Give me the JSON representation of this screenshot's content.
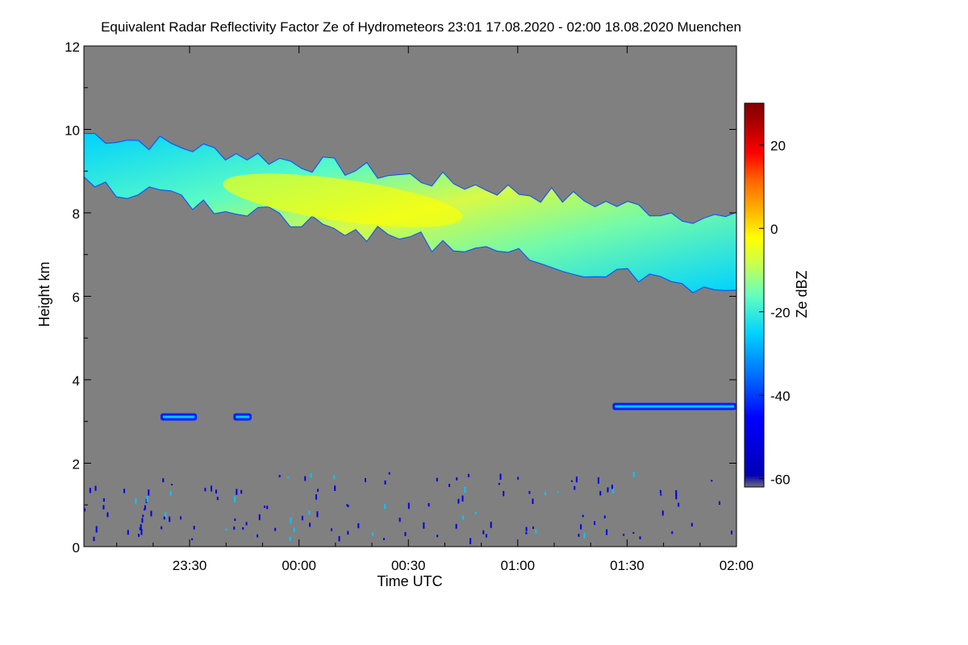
{
  "chart_data": {
    "type": "heatmap",
    "title": "Equivalent Radar Reflectivity Factor Ze of Hydrometeors   23:01 17.08.2020 - 02:00 18.08.2020 Muenchen",
    "xlabel": "Time UTC",
    "ylabel": "Height km",
    "x_range_minutes_from_midnight": [
      -59,
      120
    ],
    "x_ticks": [
      {
        "label": "23:30",
        "minutes": -30
      },
      {
        "label": "00:00",
        "minutes": 0
      },
      {
        "label": "00:30",
        "minutes": 30
      },
      {
        "label": "01:00",
        "minutes": 60
      },
      {
        "label": "01:30",
        "minutes": 90
      },
      {
        "label": "02:00",
        "minutes": 120
      }
    ],
    "ylim": [
      0,
      12
    ],
    "y_ticks": [
      0,
      2,
      4,
      6,
      8,
      10,
      12
    ],
    "colorbar": {
      "label": "Ze dBZ",
      "range": [
        -62,
        30
      ],
      "ticks": [
        -60,
        -40,
        -20,
        0,
        20
      ],
      "colors": [
        "#6e6e78",
        "#0000b4",
        "#0000ff",
        "#0064ff",
        "#00d2ff",
        "#64ffbe",
        "#c8ff50",
        "#ffff00",
        "#ffb400",
        "#ff6400",
        "#ff0000",
        "#b40000",
        "#800000"
      ]
    },
    "background_color": "#808080",
    "features": [
      {
        "name": "cirrus layer",
        "start_minutes": -59,
        "end_minutes": 120,
        "base_km_start": 8.9,
        "base_km_end": 6.3,
        "top_km_start": 9.9,
        "top_km_end": 7.8,
        "peak_ze_dbz": -2
      },
      {
        "name": "layer near 3 km",
        "start_minutes": -38,
        "end_minutes": -28,
        "height_km": 3.1,
        "ze_dbz": -35
      },
      {
        "name": "layer near 3 km",
        "start_minutes": -18,
        "end_minutes": -13,
        "height_km": 3.1,
        "ze_dbz": -35
      },
      {
        "name": "layer near 3.4 km",
        "start_minutes": 86,
        "end_minutes": 120,
        "height_km": 3.35,
        "ze_dbz": -38
      },
      {
        "name": "low-level clutter",
        "start_minutes": -59,
        "end_minutes": 120,
        "height_range_km": [
          0.2,
          1.8
        ],
        "ze_dbz": -45
      }
    ]
  }
}
